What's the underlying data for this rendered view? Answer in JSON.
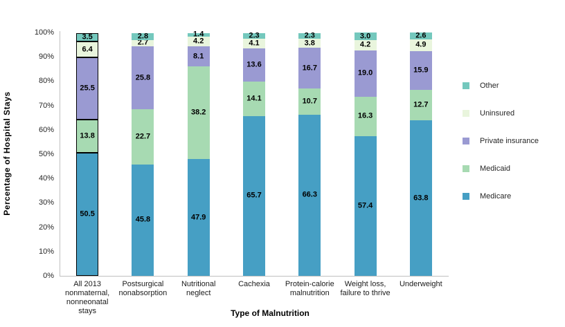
{
  "chart_data": {
    "type": "bar",
    "subtype": "stacked-percentage",
    "title": "",
    "xlabel": "Type of Malnutrition",
    "ylabel": "Percentage of Hospital Stays",
    "ylim": [
      0,
      100
    ],
    "grid": false,
    "ytick_labels": [
      "0%",
      "10%",
      "20%",
      "30%",
      "40%",
      "50%",
      "60%",
      "70%",
      "80%",
      "90%",
      "100%"
    ],
    "categories": [
      {
        "lines": [
          "All 2013",
          "nonmaternal,",
          "nonneonatal",
          "stays"
        ],
        "highlighted": true
      },
      {
        "lines": [
          "Postsurgical",
          "nonabsorption"
        ],
        "highlighted": false
      },
      {
        "lines": [
          "Nutritional",
          "neglect"
        ],
        "highlighted": false
      },
      {
        "lines": [
          "Cachexia"
        ],
        "highlighted": false
      },
      {
        "lines": [
          "Protein-calorie",
          "malnutrition"
        ],
        "highlighted": false
      },
      {
        "lines": [
          "Weight loss,",
          "failure to thrive"
        ],
        "highlighted": false
      },
      {
        "lines": [
          "Underweight"
        ],
        "highlighted": false
      }
    ],
    "series": [
      {
        "name": "Medicare",
        "color": "#469fc4",
        "values": [
          50.5,
          45.8,
          47.9,
          65.7,
          66.3,
          57.4,
          63.8
        ],
        "labels": [
          "50.5",
          "45.8",
          "47.9",
          "65.7",
          "66.3",
          "57.4",
          "63.8"
        ]
      },
      {
        "name": "Medicaid",
        "color": "#a7dab2",
        "values": [
          13.8,
          22.7,
          38.2,
          14.1,
          10.7,
          16.3,
          12.7
        ],
        "labels": [
          "13.8",
          "22.7",
          "38.2",
          "14.1",
          "10.7",
          "16.3",
          "12.7"
        ]
      },
      {
        "name": "Private insurance",
        "color": "#9a9ad2",
        "values": [
          25.5,
          25.8,
          8.1,
          13.6,
          16.7,
          19.0,
          15.9
        ],
        "labels": [
          "25.5",
          "25.8",
          "8.1",
          "13.6",
          "16.7",
          "19.0",
          "15.9"
        ]
      },
      {
        "name": "Uninsured",
        "color": "#e9f5dd",
        "values": [
          6.4,
          2.7,
          4.2,
          4.1,
          3.8,
          4.2,
          4.9
        ],
        "labels": [
          "6.4",
          "2.7",
          "4.2",
          "4.1",
          "3.8",
          "4.2",
          "4.9"
        ]
      },
      {
        "name": "Other",
        "color": "#74c8bd",
        "values": [
          3.5,
          2.8,
          1.4,
          2.3,
          2.3,
          3.0,
          2.6
        ],
        "labels": [
          "3.5",
          "2.8",
          "1.4",
          "2.3",
          "2.3",
          "3.0",
          "2.6"
        ]
      }
    ],
    "legend": {
      "position": "right",
      "order": [
        "Other",
        "Uninsured",
        "Private insurance",
        "Medicaid",
        "Medicare"
      ]
    },
    "axis_color": "#bfbfbf",
    "highlight_border_color": "#000000"
  }
}
